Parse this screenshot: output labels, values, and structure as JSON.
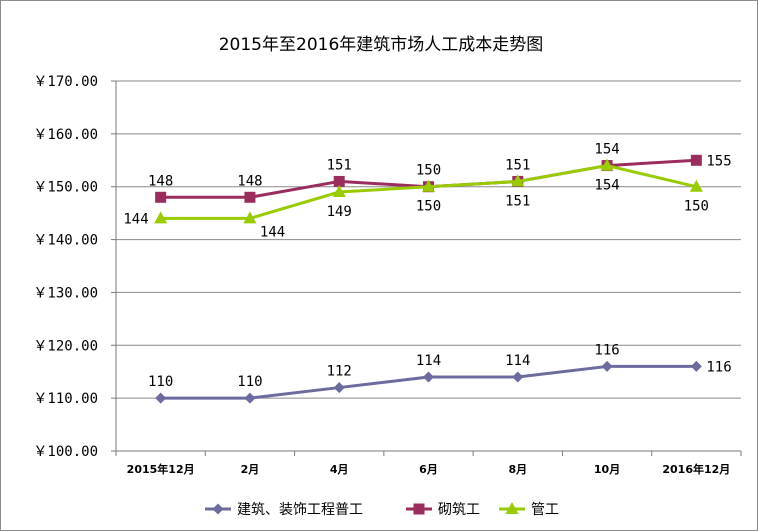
{
  "chart_data": {
    "type": "line",
    "title": "2015年至2016年建筑市场人工成本走势图",
    "categories": [
      "2015年12月",
      "2月",
      "4月",
      "6月",
      "8月",
      "10月",
      "2016年12月"
    ],
    "ylim": [
      100,
      170
    ],
    "yticks": [
      170,
      160,
      150,
      140,
      130,
      120,
      110,
      100
    ],
    "ytick_labels": [
      "￥170.00",
      "￥160.00",
      "￥150.00",
      "￥140.00",
      "￥130.00",
      "￥120.00",
      "￥110.00",
      "￥100.00"
    ],
    "grid": true,
    "legend_position": "bottom",
    "series": [
      {
        "name": "建筑、装饰工程普工",
        "values": [
          110,
          110,
          112,
          114,
          114,
          116,
          116
        ],
        "color": "#6b6b9e",
        "marker": "diamond",
        "label_pos": [
          "above",
          "above",
          "above",
          "above",
          "above",
          "above",
          "right"
        ]
      },
      {
        "name": "砌筑工",
        "values": [
          148,
          148,
          151,
          150,
          151,
          154,
          155
        ],
        "color": "#9b2d5e",
        "marker": "square",
        "label_pos": [
          "above",
          "above",
          "above",
          "above",
          "above",
          "above",
          "right"
        ]
      },
      {
        "name": "管工",
        "values": [
          144,
          144,
          149,
          150,
          151,
          154,
          150
        ],
        "color": "#99cc00",
        "marker": "triangle",
        "label_pos": [
          "left",
          "below-right",
          "below",
          "below",
          "below",
          "below",
          "below"
        ]
      }
    ]
  }
}
